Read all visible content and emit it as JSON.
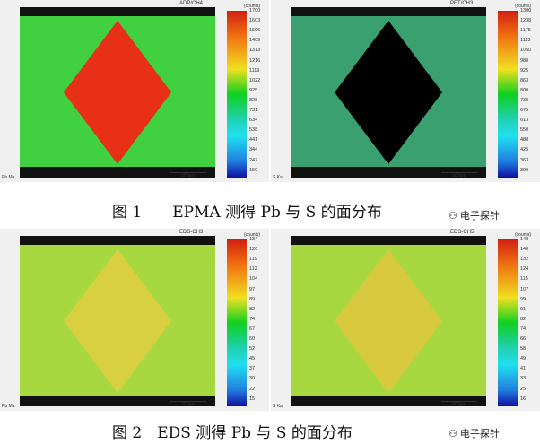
{
  "panels": [
    {
      "title": "ADP/CH4",
      "unit": "(counts)",
      "element": "Pb Ma",
      "scale": "500μm",
      "ticks": [
        "1700",
        "1603",
        "1506",
        "1409",
        "1313",
        "1216",
        "1119",
        "1022",
        "925",
        "828",
        "731",
        "634",
        "538",
        "441",
        "344",
        "247",
        "150"
      ],
      "band": "#40d040",
      "dia": "#e83018"
    },
    {
      "title": "PET/CH3",
      "unit": "(counts)",
      "element": "S Ka",
      "scale": "500μm",
      "ticks": [
        "1300",
        "1238",
        "1175",
        "1113",
        "1050",
        "988",
        "925",
        "863",
        "800",
        "738",
        "675",
        "613",
        "550",
        "488",
        "425",
        "363",
        "300"
      ],
      "band": "#3aa070",
      "dia": "#000000"
    },
    {
      "title": "EDS-CH3",
      "unit": "(counts)",
      "element": "Pb Ma",
      "scale": "500μm",
      "ticks": [
        "134",
        "126",
        "119",
        "112",
        "104",
        "97",
        "89",
        "82",
        "74",
        "67",
        "60",
        "52",
        "45",
        "37",
        "30",
        "22",
        "15"
      ],
      "band": "#a8d840",
      "dia": "#d8d040"
    },
    {
      "title": "EDS-CH5",
      "unit": "(counts)",
      "element": "S Ka",
      "scale": "500μm",
      "ticks": [
        "148",
        "140",
        "132",
        "124",
        "115",
        "107",
        "99",
        "91",
        "82",
        "74",
        "66",
        "58",
        "49",
        "41",
        "33",
        "25",
        "16"
      ],
      "band": "#a8d840",
      "dia": "#d8c840"
    }
  ],
  "captions": [
    "图 1　　EPMA 测得 Pb 与 S 的面分布",
    "图 2　EDS 测得 Pb 与 S 的面分布"
  ],
  "watermark": "电子探针"
}
